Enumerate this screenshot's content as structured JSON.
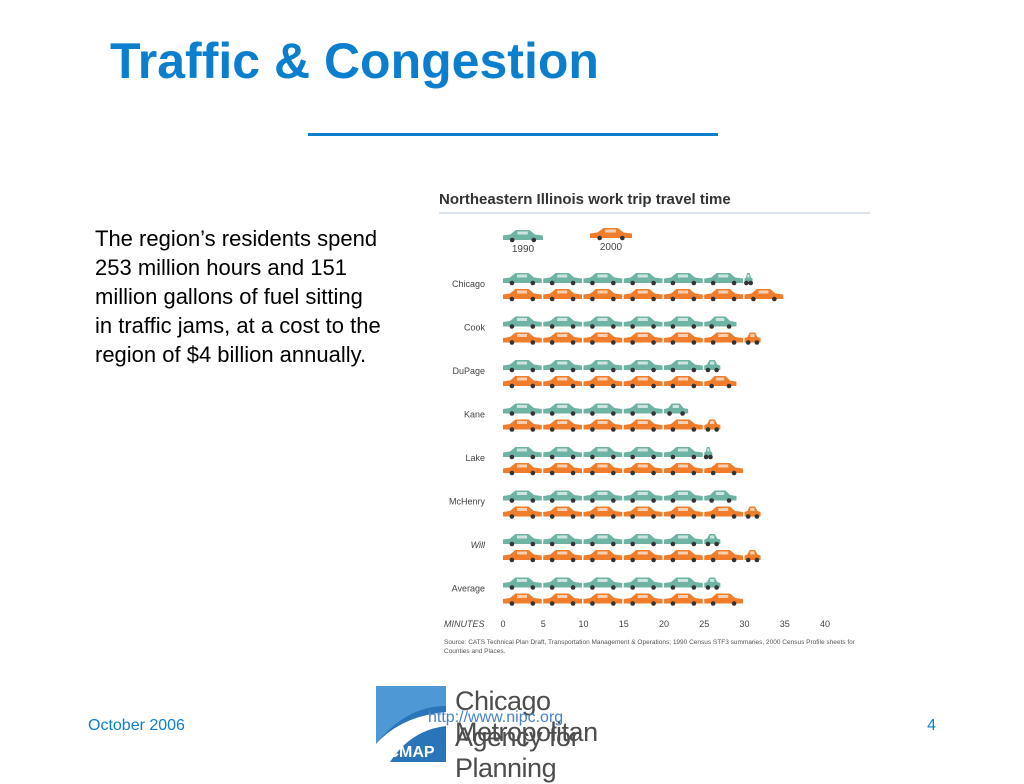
{
  "slide": {
    "title": "Traffic & Congestion",
    "body": "The region’s residents spend 253 million hours and 151 million gallons of fuel sitting in traffic jams, at a cost to the region of $4 billion annually."
  },
  "footer": {
    "date": "October 2006",
    "url": "http://www.nipc.org",
    "page": "4"
  },
  "logo": {
    "mark": "CMAP",
    "line1": "Chicago Metropolitan",
    "line2": "Agency for Planning"
  },
  "colors": {
    "accent": "#0b7fce",
    "car_1990": "#6fb3a4",
    "car_2000": "#ef7d2c"
  },
  "chart_data": {
    "type": "bar",
    "title": "Northeastern Illinois work trip travel time",
    "xlabel": "MINUTES",
    "xlim": [
      0,
      40
    ],
    "xticks": [
      0,
      5,
      10,
      15,
      20,
      25,
      30,
      35,
      40
    ],
    "categories": [
      "Chicago",
      "Cook",
      "DuPage",
      "Kane",
      "Lake",
      "McHenry",
      "Will",
      "Average"
    ],
    "series": [
      {
        "name": "1990",
        "color": "#6fb3a4",
        "values": [
          31,
          29,
          27,
          23,
          26,
          29,
          27,
          27
        ]
      },
      {
        "name": "2000",
        "color": "#ef7d2c",
        "values": [
          35,
          32,
          29,
          27,
          30,
          32,
          32,
          30
        ]
      }
    ],
    "source": "Source: CATS Technical Plan Draft, Transportation Management & Operations; 1990 Census STF3 summaries, 2000 Census Profile sheets for Counties and Places."
  }
}
